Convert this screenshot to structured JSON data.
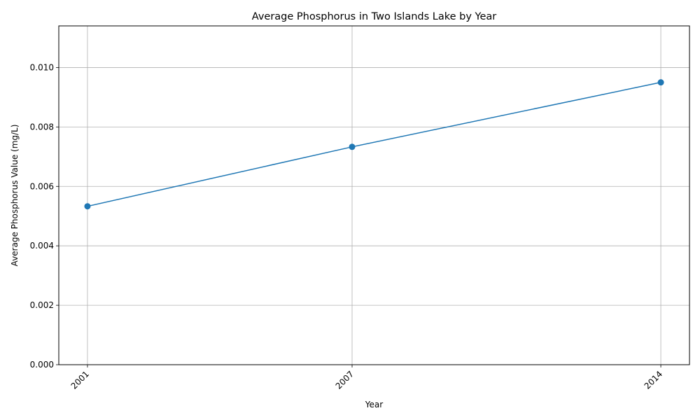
{
  "chart_data": {
    "type": "line",
    "title": "Average Phosphorus in Two Islands Lake by Year",
    "xlabel": "Year",
    "ylabel": "Average Phosphorus Value (mg/L)",
    "x": [
      2001,
      2007,
      2014
    ],
    "x_tick_labels": [
      "2001",
      "2007",
      "2014"
    ],
    "series": [
      {
        "values": [
          0.00533,
          0.00733,
          0.0095
        ],
        "color": "#1f77b4",
        "marker": "circle"
      }
    ],
    "xlim": [
      2000.35,
      2014.65
    ],
    "ylim": [
      0,
      0.0114
    ],
    "y_ticks": [
      0,
      0.002,
      0.004,
      0.006,
      0.008,
      0.01
    ],
    "y_tick_labels": [
      "0.000",
      "0.002",
      "0.004",
      "0.006",
      "0.008",
      "0.010"
    ],
    "grid": true,
    "x_tick_rotation": 45
  }
}
